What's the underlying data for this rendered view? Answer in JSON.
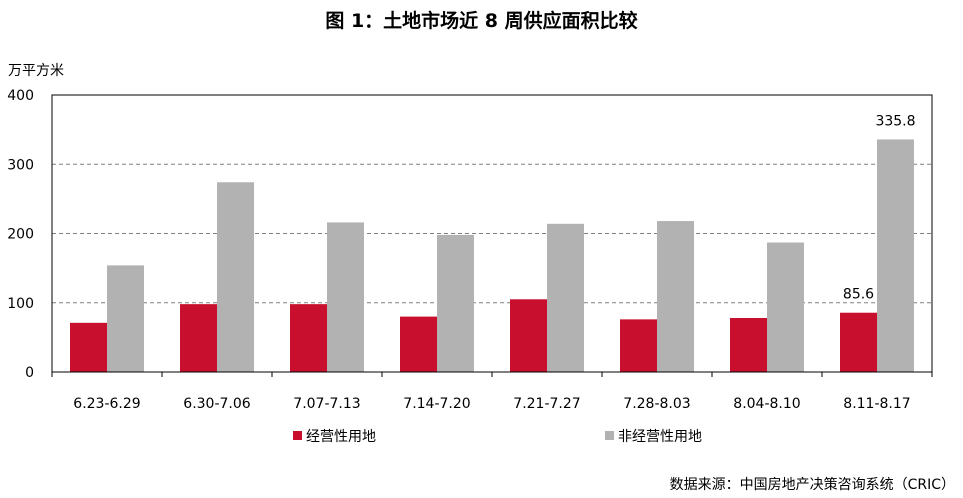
{
  "title": "图 1：土地市场近 8 周供应面积比较",
  "source": "数据来源：中国房地产决策咨询系统（CRIC）",
  "colors": {
    "operating": "#C8102E",
    "non_operating": "#B2B2B2",
    "grid": "#808080",
    "axis": "#000000"
  },
  "chart_data": {
    "type": "bar",
    "title": "图 1：土地市场近 8 周供应面积比较",
    "xlabel": "",
    "ylabel": "万平方米",
    "ylim": [
      0,
      400
    ],
    "yticks": [
      0,
      100,
      200,
      300,
      400
    ],
    "grid": "horizontal-dashed",
    "legend_position": "bottom-left",
    "categories": [
      "6.23-6.29",
      "6.30-7.06",
      "7.07-7.13",
      "7.14-7.20",
      "7.21-7.27",
      "7.28-8.03",
      "8.04-8.10",
      "8.11-8.17"
    ],
    "series": [
      {
        "name": "经营性用地",
        "values": [
          71,
          98,
          98,
          80,
          105,
          76,
          78,
          85.6
        ]
      },
      {
        "name": "非经营性用地",
        "values": [
          154,
          274,
          216,
          198,
          214,
          218,
          187,
          335.8
        ]
      }
    ],
    "data_labels": [
      {
        "series": 0,
        "index": 7,
        "text": "85.6"
      },
      {
        "series": 1,
        "index": 7,
        "text": "335.8"
      }
    ]
  }
}
